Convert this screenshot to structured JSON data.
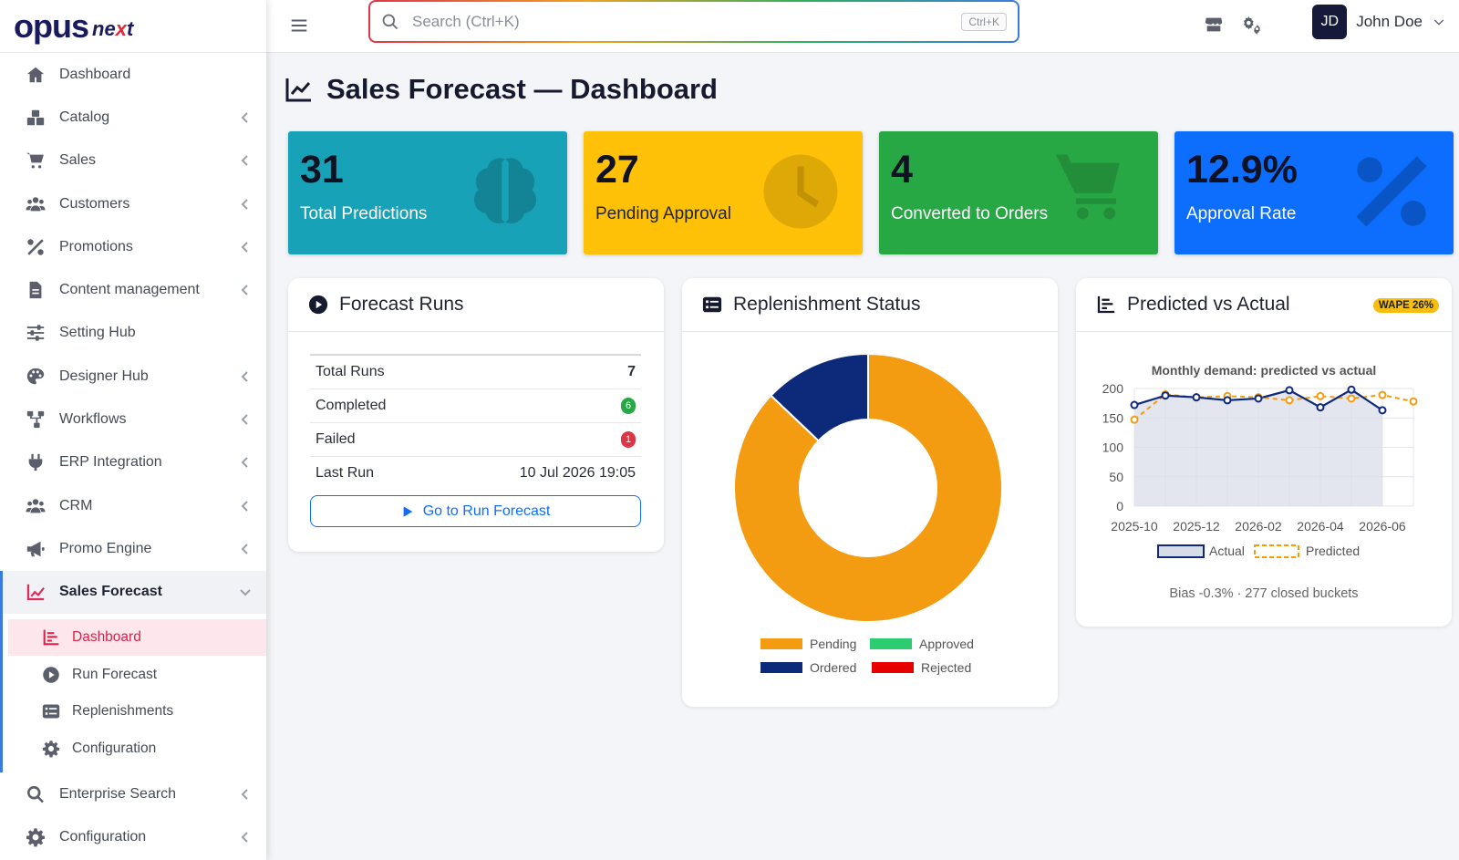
{
  "brand": {
    "main": "opus",
    "sub_a": "ne",
    "sub_b": "x",
    "sub_c": "t"
  },
  "sidebar": {
    "items": [
      {
        "label": "Dashboard",
        "icon": "home-icon",
        "chevron": false
      },
      {
        "label": "Catalog",
        "icon": "boxes-icon",
        "chevron": true
      },
      {
        "label": "Sales",
        "icon": "cart-icon",
        "chevron": true
      },
      {
        "label": "Customers",
        "icon": "users-icon",
        "chevron": true
      },
      {
        "label": "Promotions",
        "icon": "percent-icon",
        "chevron": true
      },
      {
        "label": "Content management",
        "icon": "file-icon",
        "chevron": true
      },
      {
        "label": "Setting Hub",
        "icon": "sliders-icon",
        "chevron": false
      },
      {
        "label": "Designer Hub",
        "icon": "palette-icon",
        "chevron": true
      },
      {
        "label": "Workflows",
        "icon": "sitemap-icon",
        "chevron": true
      },
      {
        "label": "ERP Integration",
        "icon": "plug-icon",
        "chevron": true
      },
      {
        "label": "CRM",
        "icon": "users-icon",
        "chevron": true
      },
      {
        "label": "Promo Engine",
        "icon": "megaphone-icon",
        "chevron": true
      },
      {
        "label": "Sales Forecast",
        "icon": "chart-line-icon",
        "chevron": true
      }
    ],
    "sub_items": [
      {
        "label": "Dashboard",
        "icon": "chart-bar-icon"
      },
      {
        "label": "Run Forecast",
        "icon": "play-circle-icon"
      },
      {
        "label": "Replenishments",
        "icon": "list-icon"
      },
      {
        "label": "Configuration",
        "icon": "gear-icon"
      }
    ],
    "bottom_items": [
      {
        "label": "Enterprise Search",
        "icon": "search-icon"
      },
      {
        "label": "Configuration",
        "icon": "gear-icon"
      }
    ]
  },
  "topbar": {
    "search_placeholder": "Search (Ctrl+K)",
    "search_shortcut": "Ctrl+K",
    "user_initials": "JD",
    "user_name": "John Doe"
  },
  "page": {
    "title": "Sales Forecast — Dashboard"
  },
  "stats": [
    {
      "value": "31",
      "label": "Total Predictions",
      "bg": "#17a2b8",
      "text": "#ffffff",
      "icon": "brain-icon"
    },
    {
      "value": "27",
      "label": "Pending Approval",
      "bg": "#ffc107",
      "text": "#1f2430",
      "icon": "clock-icon"
    },
    {
      "value": "4",
      "label": "Converted to Orders",
      "bg": "#28a745",
      "text": "#ffffff",
      "icon": "cart-icon"
    },
    {
      "value": "12.9%",
      "label": "Approval Rate",
      "bg": "#0d6efd",
      "text": "#ffffff",
      "icon": "percent-icon"
    }
  ],
  "forecast_runs": {
    "title": "Forecast Runs",
    "rows": [
      {
        "label": "Total Runs",
        "value": "7"
      },
      {
        "label": "Completed",
        "value": "6"
      },
      {
        "label": "Failed",
        "value": "1"
      },
      {
        "label": "Last Run",
        "value": "10 Jul 2026 19:05"
      }
    ],
    "button": "Go to Run Forecast"
  },
  "replenishment": {
    "title": "Replenishment Status"
  },
  "predicted_actual": {
    "title": "Predicted vs Actual",
    "badge": "WAPE 26%",
    "footer": "Bias -0.3% · 277 closed buckets"
  },
  "chart_data": [
    {
      "type": "pie",
      "categories": [
        "Pending",
        "Approved",
        "Ordered",
        "Rejected"
      ],
      "values": [
        27,
        0,
        4,
        0
      ],
      "colors": [
        "#f39c12",
        "#2ecc71",
        "#0d2a7a",
        "#e60000"
      ],
      "legend": "bottom"
    },
    {
      "type": "line",
      "title": "Monthly demand: predicted vs actual",
      "x": [
        "2025-10",
        "2025-11",
        "2025-12",
        "2026-01",
        "2026-02",
        "2026-03",
        "2026-04",
        "2026-05",
        "2026-06",
        "2026-07"
      ],
      "x_tick_labels": [
        "2025-10",
        "2025-12",
        "2026-02",
        "2026-04",
        "2026-06"
      ],
      "series": [
        {
          "name": "Actual",
          "values": [
            172,
            188,
            185,
            180,
            183,
            197,
            168,
            198,
            163,
            null
          ],
          "color": "#0d2a7a",
          "fill": "#d8dbe8"
        },
        {
          "name": "Predicted",
          "values": [
            147,
            190,
            185,
            187,
            185,
            180,
            187,
            183,
            189,
            178
          ],
          "color": "#f39c12",
          "dashed": true
        }
      ],
      "ylim": [
        0,
        200
      ],
      "yticks": [
        0,
        50,
        100,
        150,
        200
      ],
      "grid": true,
      "legend": "bottom"
    }
  ]
}
